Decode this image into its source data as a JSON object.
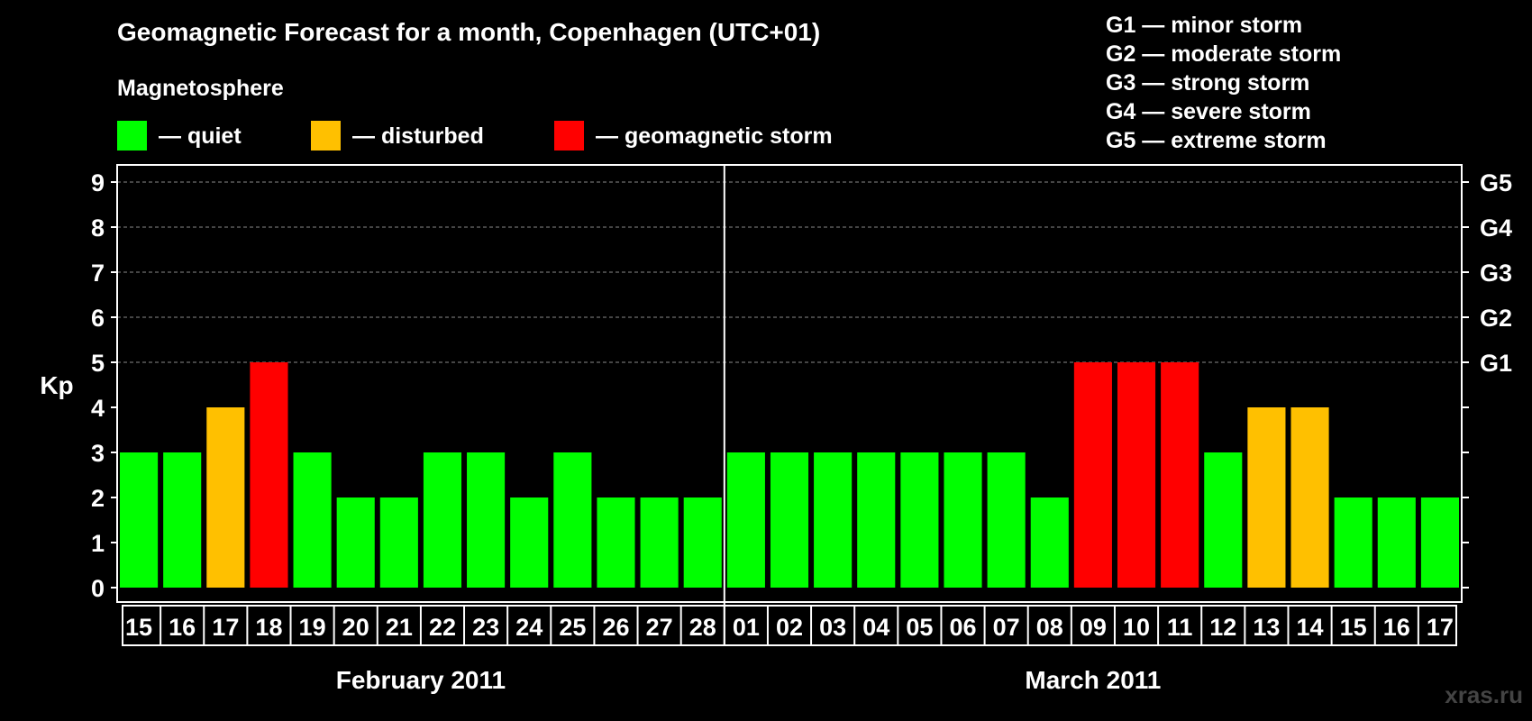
{
  "chart_data": {
    "type": "bar",
    "title": "Geomagnetic Forecast for a month, Copenhagen (UTC+01)",
    "ylabel": "Kp",
    "ylim": [
      0,
      9
    ],
    "yticks": [
      "0",
      "1",
      "2",
      "3",
      "4",
      "5",
      "6",
      "7",
      "8",
      "9"
    ],
    "right_ticks": [
      {
        "kp": 5,
        "label": "G1"
      },
      {
        "kp": 6,
        "label": "G2"
      },
      {
        "kp": 7,
        "label": "G3"
      },
      {
        "kp": 8,
        "label": "G4"
      },
      {
        "kp": 9,
        "label": "G5"
      }
    ],
    "grid": true,
    "legend": {
      "heading": "Magnetosphere",
      "placement": "top-left",
      "items": [
        {
          "label": "— quiet",
          "color": "#00ff00"
        },
        {
          "label": "— disturbed",
          "color": "#ffc000"
        },
        {
          "label": "— geomagnetic storm",
          "color": "#ff0000"
        }
      ]
    },
    "storm_scale": [
      "G1 — minor storm",
      "G2 — moderate storm",
      "G3 — strong storm",
      "G4 — severe storm",
      "G5 — extreme storm"
    ],
    "months": [
      {
        "label": "February 2011",
        "days": 14
      },
      {
        "label": "March 2011",
        "days": 17
      }
    ],
    "categories": [
      "15",
      "16",
      "17",
      "18",
      "19",
      "20",
      "21",
      "22",
      "23",
      "24",
      "25",
      "26",
      "27",
      "28",
      "01",
      "02",
      "03",
      "04",
      "05",
      "06",
      "07",
      "08",
      "09",
      "10",
      "11",
      "12",
      "13",
      "14",
      "15",
      "16",
      "17"
    ],
    "values": [
      3,
      3,
      4,
      5,
      3,
      2,
      2,
      3,
      3,
      2,
      3,
      2,
      2,
      2,
      3,
      3,
      3,
      3,
      3,
      3,
      3,
      2,
      5,
      5,
      5,
      3,
      4,
      4,
      2,
      2,
      2
    ],
    "status": [
      "quiet",
      "quiet",
      "disturbed",
      "storm",
      "quiet",
      "quiet",
      "quiet",
      "quiet",
      "quiet",
      "quiet",
      "quiet",
      "quiet",
      "quiet",
      "quiet",
      "quiet",
      "quiet",
      "quiet",
      "quiet",
      "quiet",
      "quiet",
      "quiet",
      "quiet",
      "storm",
      "storm",
      "storm",
      "quiet",
      "disturbed",
      "disturbed",
      "quiet",
      "quiet",
      "quiet"
    ],
    "colors": {
      "quiet": "#00ff00",
      "disturbed": "#ffc000",
      "storm": "#ff0000"
    }
  },
  "watermark": "xras.ru"
}
